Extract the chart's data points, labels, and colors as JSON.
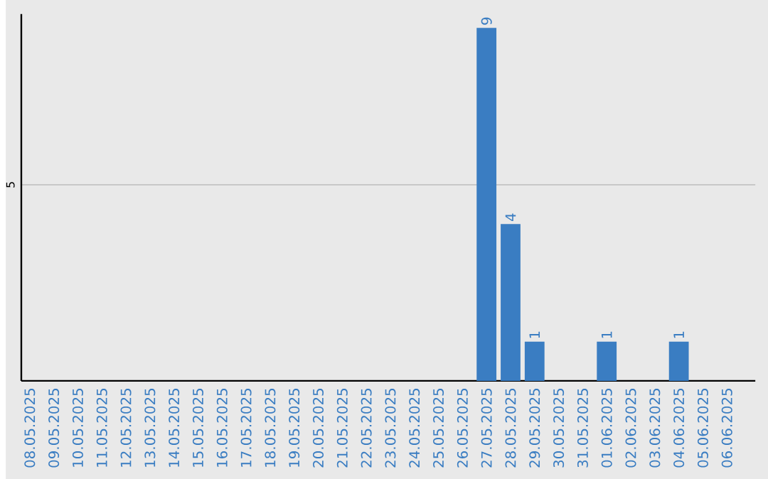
{
  "chart_data": {
    "type": "bar",
    "categories": [
      "08.05.2025",
      "09.05.2025",
      "10.05.2025",
      "11.05.2025",
      "12.05.2025",
      "13.05.2025",
      "14.05.2025",
      "15.05.2025",
      "16.05.2025",
      "17.05.2025",
      "18.05.2025",
      "19.05.2025",
      "20.05.2025",
      "21.05.2025",
      "22.05.2025",
      "23.05.2025",
      "24.05.2025",
      "25.05.2025",
      "26.05.2025",
      "27.05.2025",
      "28.05.2025",
      "29.05.2025",
      "30.05.2025",
      "31.05.2025",
      "01.06.2025",
      "02.06.2025",
      "03.06.2025",
      "04.06.2025",
      "05.06.2025",
      "06.06.2025"
    ],
    "values": [
      null,
      null,
      null,
      null,
      null,
      null,
      null,
      null,
      null,
      null,
      null,
      null,
      null,
      null,
      null,
      null,
      null,
      null,
      null,
      9,
      4,
      1,
      null,
      null,
      1,
      null,
      null,
      1,
      null,
      null
    ],
    "data_labels": true,
    "color": "#3a7dc2",
    "ylim": [
      0,
      9.35
    ],
    "yticks": [
      5
    ],
    "grid": "y"
  }
}
